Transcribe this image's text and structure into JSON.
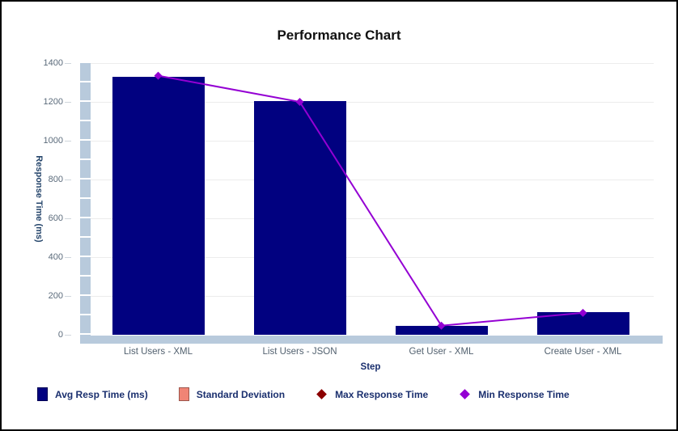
{
  "window": {
    "background": "#ffffff",
    "border_color": "#000000"
  },
  "chart_data": {
    "type": "bar",
    "title": "Performance Chart",
    "xlabel": "Step",
    "ylabel": "Response Time (ms)",
    "categories": [
      "List Users - XML",
      "List Users - JSON",
      "Get User - XML",
      "Create User - XML"
    ],
    "series": [
      {
        "name": "Avg Resp Time (ms)",
        "type": "bar",
        "marker": "square",
        "color": "#010180",
        "values": [
          1330,
          1205,
          45,
          118
        ]
      },
      {
        "name": "Standard Deviation",
        "type": "bar",
        "marker": "square",
        "color": "#F08475",
        "values": []
      },
      {
        "name": "Max Response Time",
        "type": "line",
        "marker": "diamond",
        "color": "#8B0000",
        "values": []
      },
      {
        "name": "Min Response Time",
        "type": "line",
        "marker": "diamond",
        "color": "#9400D3",
        "values": [
          1335,
          1200,
          47,
          113
        ]
      }
    ],
    "ylim": [
      0,
      1400
    ],
    "ytick_step": 200,
    "grid": true,
    "legend_position": "bottom",
    "axis_strip_color": "#b8cadc",
    "gridline_color": "#ececec"
  }
}
